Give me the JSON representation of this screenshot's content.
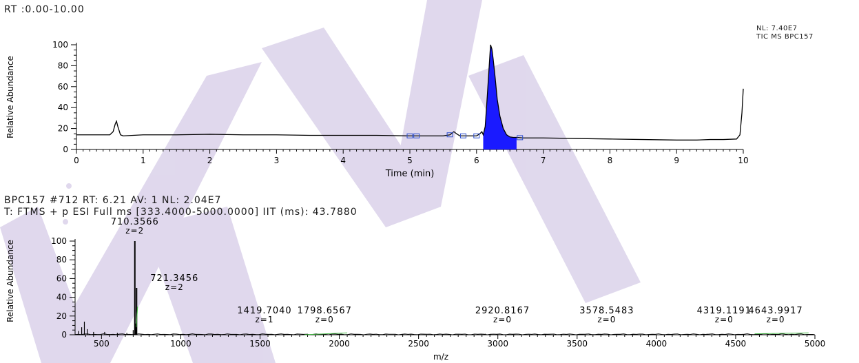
{
  "top_panel": {
    "header": "RT :0.00-10.00",
    "nl_line1": "NL: 7.40E7",
    "nl_line2": "TIC  MS  BPC157"
  },
  "bottom_panel": {
    "header_line1": "BPC157 #712 RT: 6.21 AV: 1 NL: 2.04E7",
    "header_line2": "T: FTMS + p ESI Full ms [333.4000-5000.0000] IIT (ms): 43.7880"
  },
  "chart_data": [
    {
      "type": "line",
      "name": "chromatogram",
      "title": "",
      "xlabel": "Time (min)",
      "ylabel": "Relative Abundance",
      "xlim": [
        0,
        10
      ],
      "ylim": [
        0,
        100
      ],
      "xticks": [
        0,
        1,
        2,
        3,
        4,
        5,
        6,
        7,
        8,
        9,
        10
      ],
      "yticks": [
        0,
        20,
        40,
        60,
        80,
        100
      ],
      "series": [
        {
          "color": "#000000",
          "x": [
            0,
            0.3,
            0.5,
            0.55,
            0.58,
            0.6,
            0.62,
            0.66,
            0.7,
            1.0,
            1.5,
            2.0,
            2.5,
            3.0,
            3.5,
            4.0,
            4.5,
            5.0,
            5.3,
            5.5,
            5.6,
            5.66,
            5.7,
            5.75,
            5.8,
            5.9,
            6.0,
            6.05,
            6.08,
            6.1,
            6.13,
            6.16,
            6.19,
            6.21,
            6.23,
            6.25,
            6.28,
            6.31,
            6.35,
            6.4,
            6.45,
            6.5,
            6.55,
            6.6,
            6.7,
            6.8,
            7.0,
            7.5,
            8.0,
            8.5,
            9.0,
            9.3,
            9.5,
            9.7,
            9.9,
            9.95,
            9.98,
            10.0
          ],
          "y": [
            14,
            14,
            14,
            17,
            24,
            27,
            22,
            14,
            13,
            14,
            14,
            14.5,
            14,
            14,
            13.5,
            13.5,
            13.5,
            13,
            13,
            13,
            14,
            17,
            15,
            13,
            13,
            13,
            13,
            15,
            17,
            14,
            22,
            50,
            80,
            100,
            96,
            86,
            68,
            48,
            32,
            20,
            14,
            12,
            11.5,
            11.5,
            11,
            11,
            11,
            10.5,
            10,
            9.5,
            9,
            9,
            9.5,
            9.5,
            10,
            14,
            35,
            58
          ]
        }
      ],
      "filled_peak": {
        "x_start": 6.1,
        "x_end": 6.6,
        "color": "#1a1aff"
      },
      "markers_x": [
        5.0,
        5.1,
        5.6,
        5.8,
        6.0,
        6.65
      ]
    },
    {
      "type": "bar",
      "name": "mass_spectrum",
      "title": "",
      "xlabel": "m/z",
      "ylabel": "Relative Abundance",
      "xlim": [
        333.4,
        5000
      ],
      "ylim": [
        0,
        100
      ],
      "xticks": [
        500,
        1000,
        1500,
        2000,
        2500,
        3000,
        3500,
        4000,
        4500,
        5000
      ],
      "yticks": [
        0,
        20,
        40,
        60,
        80,
        100
      ],
      "peaks": [
        {
          "mz": 355,
          "y": 4
        },
        {
          "mz": 375,
          "y": 8
        },
        {
          "mz": 392,
          "y": 14
        },
        {
          "mz": 410,
          "y": 6
        },
        {
          "mz": 450,
          "y": 3
        },
        {
          "mz": 520,
          "y": 3
        },
        {
          "mz": 600,
          "y": 2
        },
        {
          "mz": 660,
          "y": 2
        },
        {
          "mz": 700,
          "y": 5
        },
        {
          "mz": 710.3566,
          "y": 100
        },
        {
          "mz": 716,
          "y": 12
        },
        {
          "mz": 721.3456,
          "y": 50
        },
        {
          "mz": 1419.704,
          "y": 1
        },
        {
          "mz": 1798.6567,
          "y": 1
        },
        {
          "mz": 2920.8167,
          "y": 1
        },
        {
          "mz": 3578.5483,
          "y": 1
        },
        {
          "mz": 4319.1191,
          "y": 1
        },
        {
          "mz": 4643.9917,
          "y": 1
        }
      ],
      "labels": [
        {
          "mz": 710.3566,
          "y": 100,
          "text": "710.3566",
          "z": "z=2"
        },
        {
          "mz": 721.3456,
          "y": 50,
          "text": "721.3456",
          "z": "z=2"
        },
        {
          "mz": 1419.704,
          "y": 1,
          "text": "1419.7040",
          "z": "z=1"
        },
        {
          "mz": 1798.6567,
          "y": 1,
          "text": "1798.6567",
          "z": "z=0"
        },
        {
          "mz": 2920.8167,
          "y": 1,
          "text": "2920.8167",
          "z": "z=0"
        },
        {
          "mz": 3578.5483,
          "y": 1,
          "text": "3578.5483",
          "z": "z=0"
        },
        {
          "mz": 4319.1191,
          "y": 1,
          "text": "4319.1191",
          "z": "z=0"
        },
        {
          "mz": 4643.9917,
          "y": 1,
          "text": "4643.9917",
          "z": "z=0"
        }
      ],
      "isotope_traces": [
        {
          "color": "#44bb44",
          "points": [
            [
              719,
              8
            ],
            [
              728,
              30
            ]
          ]
        },
        {
          "color": "#44bb44",
          "points": [
            [
              1780,
              0
            ],
            [
              2050,
              2
            ]
          ]
        },
        {
          "color": "#44bb44",
          "points": [
            [
              4620,
              1
            ],
            [
              4960,
              2
            ]
          ]
        }
      ]
    }
  ],
  "watermark": {
    "color": "#c7badf"
  }
}
